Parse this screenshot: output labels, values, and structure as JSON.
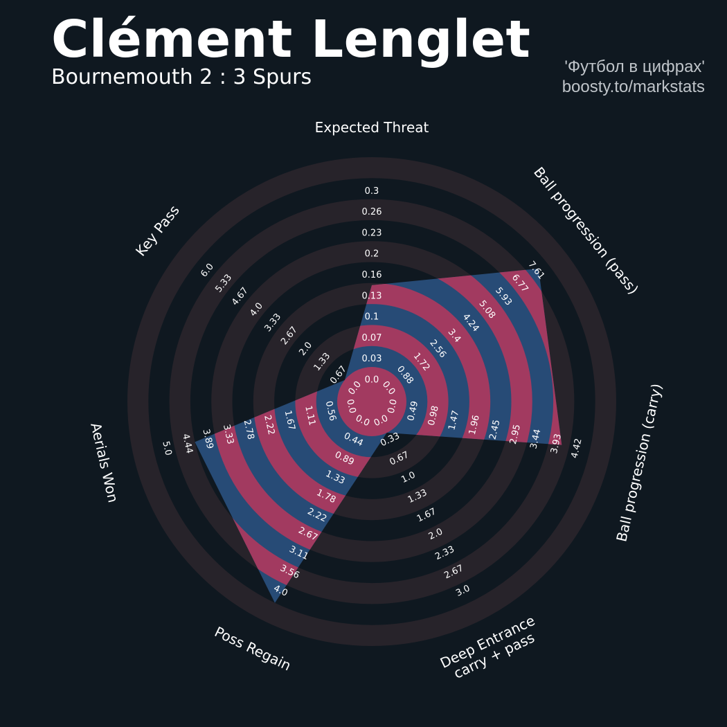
{
  "header": {
    "title": "Clément Lenglet",
    "subtitle": "Bournemouth 2 : 3 Spurs",
    "credit_line1": "'Футбол в цифрах'",
    "credit_line2": "boosty.to/markstats"
  },
  "colors": {
    "background": "#0f1820",
    "ring_band": "#27232a",
    "radar_band_fill": "#a23a60",
    "radar_fill": "#274b76"
  },
  "chart_data": {
    "type": "radar",
    "params": [
      {
        "label": "Expected Threat",
        "lines": [
          "Expected Threat"
        ],
        "value": 0.13,
        "ticks": [
          "0.0",
          "0.03",
          "0.07",
          "0.1",
          "0.13",
          "0.16",
          "0.2",
          "0.23",
          "0.26",
          "0.3"
        ]
      },
      {
        "label": "Ball progression (pass)",
        "lines": [
          "Ball progression (pass)"
        ],
        "value": 7.2,
        "ticks": [
          "0.0",
          "0.88",
          "1.72",
          "2.56",
          "3.4",
          "4.24",
          "5.08",
          "5.93",
          "6.77",
          "7.61"
        ]
      },
      {
        "label": "Ball progression (carry)",
        "lines": [
          "Ball progression (carry)"
        ],
        "value": 3.75,
        "ticks": [
          "0.0",
          "0.49",
          "0.98",
          "1.47",
          "1.96",
          "2.45",
          "2.95",
          "3.44",
          "3.93",
          "4.42"
        ]
      },
      {
        "label": "Deep Entrance carry + pass",
        "lines": [
          "Deep Entrance",
          "carry + pass"
        ],
        "value": 0.0,
        "ticks": [
          "0.0",
          "0.33",
          "0.67",
          "1.0",
          "1.33",
          "1.67",
          "2.0",
          "2.33",
          "2.67",
          "3.0"
        ]
      },
      {
        "label": "Poss Regain",
        "lines": [
          "Poss Regain"
        ],
        "value": 4.0,
        "ticks": [
          "0.0",
          "0.44",
          "0.89",
          "1.33",
          "1.78",
          "2.22",
          "2.67",
          "3.11",
          "3.56",
          "4.0"
        ]
      },
      {
        "label": "Aerials Won",
        "lines": [
          "Aerials Won"
        ],
        "value": 3.89,
        "ticks": [
          "0.0",
          "0.56",
          "1.11",
          "1.67",
          "2.22",
          "2.78",
          "3.33",
          "3.89",
          "4.44",
          "5.0"
        ]
      },
      {
        "label": "Key Pass",
        "lines": [
          "Key Pass"
        ],
        "value": 0.0,
        "ticks": [
          "0.0",
          "0.67",
          "1.33",
          "2.0",
          "2.67",
          "3.33",
          "4.0",
          "4.67",
          "5.33",
          "6.0"
        ]
      }
    ]
  }
}
